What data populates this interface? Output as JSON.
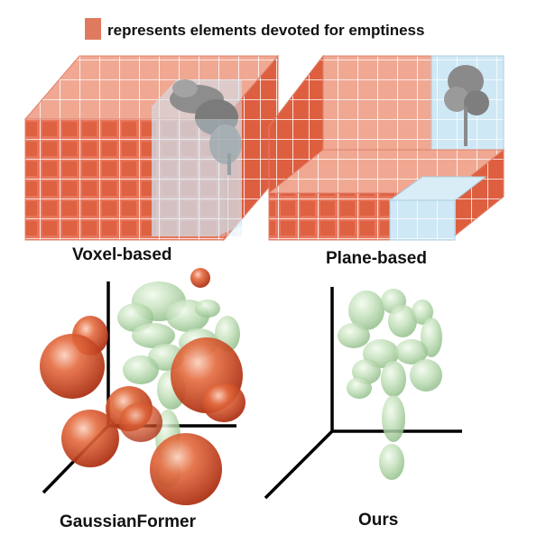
{
  "legend": {
    "text": "represents elements devoted for emptiness",
    "color": "#e07a5f"
  },
  "panels": {
    "voxel": "Voxel-based",
    "plane": "Plane-based",
    "gaussian": "GaussianFormer",
    "ours": "Ours"
  },
  "colors": {
    "empty_fill": "#e46a4e",
    "empty_edge": "#ffffff",
    "occupied_fill": "#bfe0f0",
    "gaussian_empty": "#d9481e",
    "gaussian_occupied": "#b8dcb0",
    "axis": "#000000",
    "tree_foliage": "#8a8a8a"
  }
}
